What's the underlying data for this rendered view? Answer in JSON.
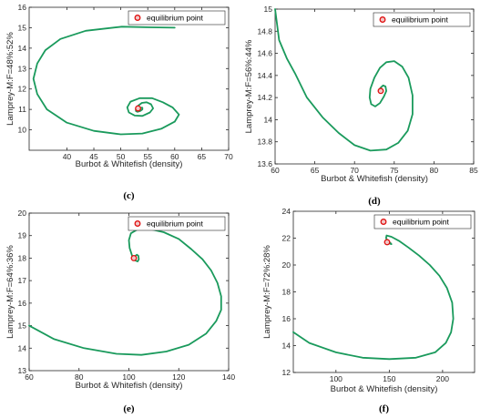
{
  "chart_data": [
    {
      "type": "line",
      "caption": "(c)",
      "xlabel": "Burbot & Whitefish (density)",
      "ylabel": "Lamprey-M:F=48%:52%",
      "xlim": [
        33,
        70
      ],
      "ylim": [
        9,
        16
      ],
      "xticks": [
        "40",
        "45",
        "50",
        "55",
        "60",
        "65",
        "70"
      ],
      "yticks": [
        "10",
        "11",
        "12",
        "13",
        "14",
        "15",
        "16"
      ],
      "legend": {
        "label": "equilibrium point",
        "position": "top-right"
      },
      "equilibrium": {
        "x": 53.2,
        "y": 11.05
      },
      "series": [
        {
          "color": "#1a9a5c",
          "x": [
            60.0,
            55.5,
            50.2,
            43.5,
            38.8,
            36.0,
            34.5,
            33.8,
            34.5,
            36.3,
            40.0,
            45.0,
            50.0,
            54.0,
            57.5,
            60.0,
            60.8,
            59.6,
            57.8,
            55.8,
            53.5,
            51.8,
            51.2,
            51.5,
            52.6,
            54.0,
            55.4,
            56.0,
            55.6,
            54.8,
            53.9,
            53.2,
            52.8,
            52.8,
            53.1,
            53.6,
            54.0,
            54.0,
            53.6,
            53.2
          ],
          "y": [
            15.0,
            15.02,
            15.05,
            14.85,
            14.45,
            13.9,
            13.25,
            12.5,
            11.75,
            11.0,
            10.35,
            9.95,
            9.78,
            9.82,
            10.05,
            10.4,
            10.75,
            11.1,
            11.35,
            11.55,
            11.55,
            11.38,
            11.1,
            10.85,
            10.7,
            10.68,
            10.85,
            11.05,
            11.25,
            11.35,
            11.32,
            11.18,
            11.02,
            10.92,
            10.88,
            10.92,
            11.0,
            11.08,
            11.08,
            11.05
          ]
        }
      ]
    },
    {
      "type": "line",
      "caption": "(d)",
      "xlabel": "Burbot & Whitefish (density)",
      "ylabel": "Lamprey-M:F=56%:44%",
      "xlim": [
        60,
        85
      ],
      "ylim": [
        13.6,
        15
      ],
      "xticks": [
        "60",
        "65",
        "70",
        "75",
        "80",
        "85"
      ],
      "yticks": [
        "13.6",
        "13.8",
        "14",
        "14.2",
        "14.4",
        "14.6",
        "14.8",
        "15"
      ],
      "legend": {
        "label": "equilibrium point",
        "position": "top-right"
      },
      "equilibrium": {
        "x": 73.3,
        "y": 14.26
      },
      "series": [
        {
          "color": "#1a9a5c",
          "x": [
            60.0,
            60.5,
            61.5,
            62.5,
            64.0,
            66.0,
            68.0,
            70.0,
            72.0,
            74.0,
            75.5,
            76.7,
            77.3,
            77.3,
            76.8,
            76.0,
            75.0,
            74.0,
            73.2,
            72.5,
            72.0,
            71.9,
            72.1,
            72.6,
            73.2,
            73.7,
            74.0,
            73.9,
            73.6,
            73.3,
            73.1,
            73.2
          ],
          "y": [
            15.0,
            14.72,
            14.55,
            14.42,
            14.2,
            14.02,
            13.88,
            13.77,
            13.72,
            13.73,
            13.79,
            13.9,
            14.05,
            14.22,
            14.38,
            14.48,
            14.53,
            14.52,
            14.47,
            14.38,
            14.28,
            14.2,
            14.14,
            14.12,
            14.15,
            14.21,
            14.26,
            14.3,
            14.31,
            14.29,
            14.27,
            14.26
          ]
        }
      ]
    },
    {
      "type": "line",
      "caption": "(e)",
      "xlabel": "Burbot & Whitefish (density)",
      "ylabel": "Lamprey-M:F=64%:36%",
      "xlim": [
        60,
        140
      ],
      "ylim": [
        13,
        20
      ],
      "xticks": [
        "60",
        "80",
        "100",
        "120",
        "140"
      ],
      "yticks": [
        "13",
        "14",
        "15",
        "16",
        "17",
        "18",
        "19",
        "20"
      ],
      "legend": {
        "label": "equilibrium point",
        "position": "top-right"
      },
      "equilibrium": {
        "x": 102,
        "y": 18.0
      },
      "series": [
        {
          "color": "#1a9a5c",
          "x": [
            60,
            70,
            82,
            95,
            105,
            115,
            124,
            131,
            135,
            137,
            137,
            135.5,
            133,
            129.5,
            125,
            120,
            114,
            108,
            103.5,
            100.8,
            100,
            100.3,
            101.3,
            102.5,
            103.5,
            104,
            103.8,
            103.2,
            102.6,
            102.2,
            102
          ],
          "y": [
            15.0,
            14.4,
            14.0,
            13.75,
            13.7,
            13.85,
            14.15,
            14.65,
            15.2,
            15.7,
            16.3,
            16.9,
            17.45,
            17.95,
            18.4,
            18.85,
            19.15,
            19.3,
            19.28,
            19.1,
            18.8,
            18.45,
            18.1,
            17.9,
            17.85,
            17.95,
            18.1,
            18.15,
            18.1,
            18.03,
            18.0
          ]
        }
      ]
    },
    {
      "type": "line",
      "caption": "(f)",
      "xlabel": "Burbot & Whitefish (density)",
      "ylabel": "Lamprey-M:F=72%:28%",
      "xlim": [
        60,
        230
      ],
      "ylim": [
        12,
        24
      ],
      "xticks": [
        "100",
        "150",
        "200"
      ],
      "yticks": [
        "12",
        "14",
        "16",
        "18",
        "20",
        "22",
        "24"
      ],
      "legend": {
        "label": "equilibrium point",
        "position": "top-right"
      },
      "equilibrium": {
        "x": 148,
        "y": 21.7
      },
      "series": [
        {
          "color": "#1a9a5c",
          "x": [
            60,
            75,
            100,
            125,
            150,
            175,
            193,
            203,
            208,
            210,
            209,
            204,
            197,
            188,
            178,
            168,
            159,
            152,
            147.5,
            147,
            148.5,
            151,
            152,
            150.5,
            149,
            148.2,
            148
          ],
          "y": [
            15.0,
            14.2,
            13.5,
            13.1,
            13.0,
            13.1,
            13.5,
            14.2,
            15.0,
            16.0,
            17.2,
            18.3,
            19.2,
            20.0,
            20.7,
            21.3,
            21.8,
            22.1,
            22.2,
            22.0,
            21.8,
            21.65,
            21.55,
            21.6,
            21.68,
            21.7,
            21.7
          ]
        }
      ]
    }
  ]
}
